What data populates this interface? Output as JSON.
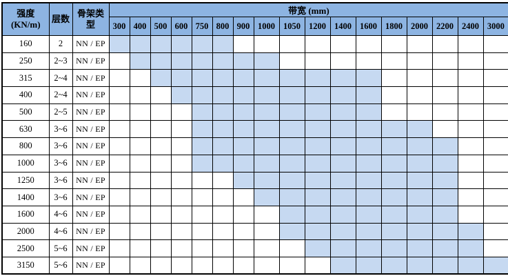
{
  "table": {
    "header": {
      "strength_line1": "强度",
      "strength_line2": "(KN/m)",
      "layers": "层数",
      "frame_line1": "骨架类",
      "frame_line2": "型",
      "bandwidth_title": "带宽 (mm)",
      "widths": [
        "300",
        "400",
        "500",
        "600",
        "750",
        "800",
        "900",
        "1000",
        "1050",
        "1200",
        "1400",
        "1600",
        "1800",
        "2000",
        "2200",
        "2400",
        "3000"
      ]
    },
    "frame_type_value": "NN / EP",
    "colors": {
      "header_bg": "#8DB4E2",
      "available_bg": "#C6D9F1",
      "grid": "#000000"
    },
    "rows": [
      {
        "strength": "160",
        "layers": "2",
        "frame_type": "NN / EP",
        "available_from": "300",
        "available_to": "800"
      },
      {
        "strength": "250",
        "layers": "2~3",
        "frame_type": "NN / EP",
        "available_from": "400",
        "available_to": "1000"
      },
      {
        "strength": "315",
        "layers": "2~4",
        "frame_type": "NN / EP",
        "available_from": "500",
        "available_to": "1600"
      },
      {
        "strength": "400",
        "layers": "2~4",
        "frame_type": "NN / EP",
        "available_from": "600",
        "available_to": "1600"
      },
      {
        "strength": "500",
        "layers": "2~5",
        "frame_type": "NN / EP",
        "available_from": "750",
        "available_to": "1600"
      },
      {
        "strength": "630",
        "layers": "3~6",
        "frame_type": "NN / EP",
        "available_from": "750",
        "available_to": "2000"
      },
      {
        "strength": "800",
        "layers": "3~6",
        "frame_type": "NN / EP",
        "available_from": "750",
        "available_to": "2200"
      },
      {
        "strength": "1000",
        "layers": "3~6",
        "frame_type": "NN / EP",
        "available_from": "750",
        "available_to": "2200"
      },
      {
        "strength": "1250",
        "layers": "3~6",
        "frame_type": "NN / EP",
        "available_from": "900",
        "available_to": "2200"
      },
      {
        "strength": "1400",
        "layers": "3~6",
        "frame_type": "NN / EP",
        "available_from": "1000",
        "available_to": "2200"
      },
      {
        "strength": "1600",
        "layers": "4~6",
        "frame_type": "NN / EP",
        "available_from": "1050",
        "available_to": "2200"
      },
      {
        "strength": "2000",
        "layers": "4~6",
        "frame_type": "NN / EP",
        "available_from": "1050",
        "available_to": "2400"
      },
      {
        "strength": "2500",
        "layers": "5~6",
        "frame_type": "NN / EP",
        "available_from": "1200",
        "available_to": "2400"
      },
      {
        "strength": "3150",
        "layers": "5~6",
        "frame_type": "NN / EP",
        "available_from": "1400",
        "available_to": "3000"
      }
    ]
  }
}
